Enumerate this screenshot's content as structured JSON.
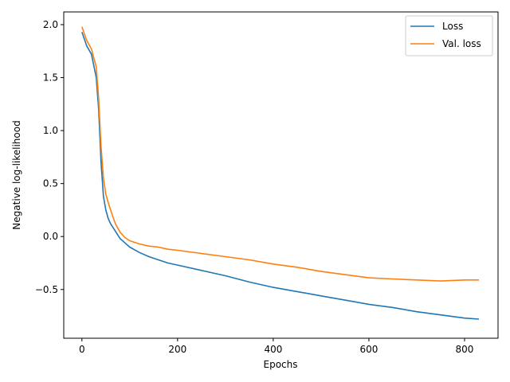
{
  "chart_data": {
    "type": "line",
    "title": "",
    "xlabel": "Epochs",
    "ylabel": "Negative log-likelihood",
    "xlim": [
      -38,
      870
    ],
    "ylim": [
      -0.96,
      2.12
    ],
    "xticks": [
      0,
      200,
      400,
      600,
      800
    ],
    "yticks": [
      -0.5,
      0.0,
      0.5,
      1.0,
      1.5,
      2.0
    ],
    "ytick_labels": [
      "−0.5",
      "0.0",
      "0.5",
      "1.0",
      "1.5",
      "2.0"
    ],
    "xtick_labels": [
      "0",
      "200",
      "400",
      "600",
      "800"
    ],
    "grid": false,
    "legend_position": "top-right",
    "series": [
      {
        "name": "Loss",
        "color": "#1f77b4",
        "x": [
          0,
          10,
          20,
          30,
          35,
          40,
          45,
          50,
          55,
          60,
          70,
          80,
          90,
          100,
          120,
          140,
          160,
          180,
          200,
          250,
          300,
          350,
          400,
          450,
          500,
          550,
          600,
          650,
          700,
          750,
          800,
          830
        ],
        "y": [
          1.93,
          1.8,
          1.72,
          1.5,
          1.2,
          0.7,
          0.38,
          0.25,
          0.17,
          0.12,
          0.05,
          -0.02,
          -0.06,
          -0.1,
          -0.15,
          -0.19,
          -0.22,
          -0.25,
          -0.27,
          -0.32,
          -0.37,
          -0.43,
          -0.48,
          -0.52,
          -0.56,
          -0.6,
          -0.64,
          -0.67,
          -0.71,
          -0.74,
          -0.77,
          -0.78
        ]
      },
      {
        "name": "Val. loss",
        "color": "#ff7f0e",
        "x": [
          0,
          10,
          20,
          30,
          35,
          40,
          45,
          50,
          55,
          60,
          70,
          80,
          90,
          100,
          120,
          140,
          160,
          180,
          200,
          250,
          300,
          350,
          400,
          450,
          500,
          550,
          600,
          650,
          700,
          750,
          800,
          830
        ],
        "y": [
          1.98,
          1.85,
          1.77,
          1.6,
          1.3,
          0.85,
          0.55,
          0.4,
          0.32,
          0.25,
          0.12,
          0.04,
          -0.01,
          -0.04,
          -0.07,
          -0.09,
          -0.1,
          -0.12,
          -0.13,
          -0.16,
          -0.19,
          -0.22,
          -0.26,
          -0.29,
          -0.33,
          -0.36,
          -0.39,
          -0.4,
          -0.41,
          -0.42,
          -0.41,
          -0.41
        ]
      }
    ]
  }
}
